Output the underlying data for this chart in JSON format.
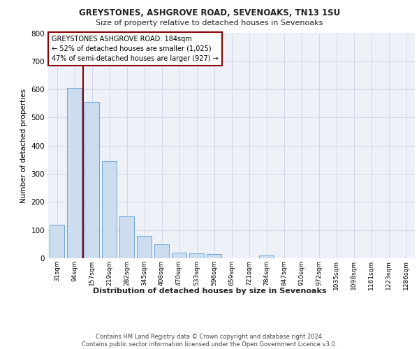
{
  "title1": "GREYSTONES, ASHGROVE ROAD, SEVENOAKS, TN13 1SU",
  "title2": "Size of property relative to detached houses in Sevenoaks",
  "xlabel": "Distribution of detached houses by size in Sevenoaks",
  "ylabel": "Number of detached properties",
  "categories": [
    "31sqm",
    "94sqm",
    "157sqm",
    "219sqm",
    "282sqm",
    "345sqm",
    "408sqm",
    "470sqm",
    "533sqm",
    "596sqm",
    "659sqm",
    "721sqm",
    "784sqm",
    "847sqm",
    "910sqm",
    "972sqm",
    "1035sqm",
    "1098sqm",
    "1161sqm",
    "1223sqm",
    "1286sqm"
  ],
  "values": [
    120,
    605,
    555,
    345,
    150,
    80,
    50,
    20,
    18,
    15,
    0,
    0,
    10,
    0,
    0,
    0,
    0,
    0,
    0,
    0,
    0
  ],
  "bar_color": "#ccddf0",
  "bar_edge_color": "#5b9bd5",
  "grid_color": "#d0d8e8",
  "bg_color": "#eef2f8",
  "vline_x": 1.5,
  "vline_color": "#8b0000",
  "annotation_text": "GREYSTONES ASHGROVE ROAD: 184sqm\n← 52% of detached houses are smaller (1,025)\n47% of semi-detached houses are larger (927) →",
  "annotation_box_color": "#8b0000",
  "footer": "Contains HM Land Registry data © Crown copyright and database right 2024.\nContains public sector information licensed under the Open Government Licence v3.0.",
  "ylim": [
    0,
    800
  ],
  "yticks": [
    0,
    100,
    200,
    300,
    400,
    500,
    600,
    700,
    800
  ]
}
